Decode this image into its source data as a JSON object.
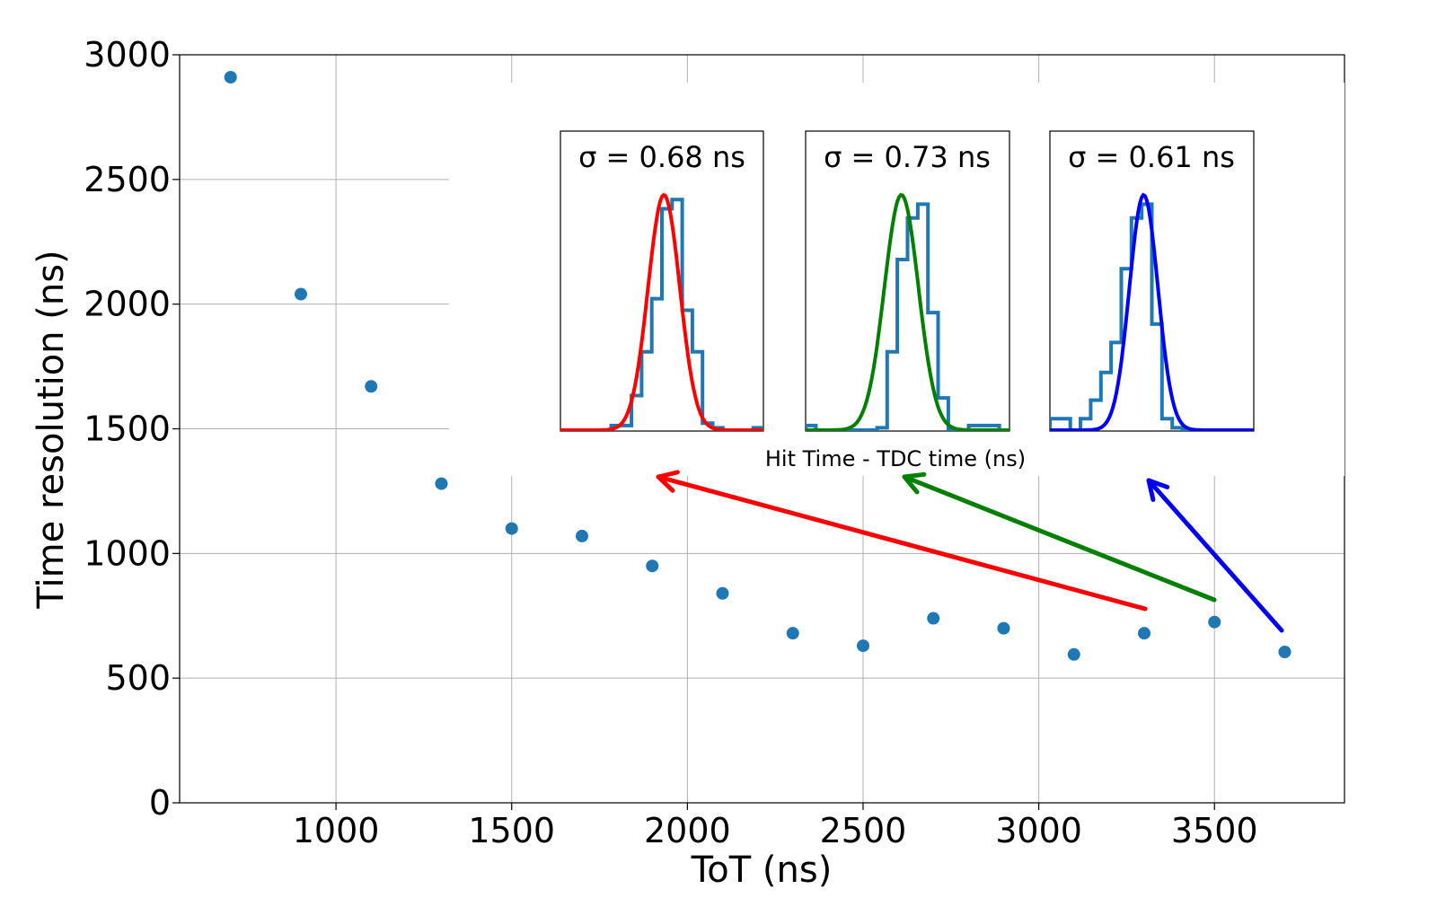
{
  "chart_data": {
    "type": "scatter",
    "title": "",
    "xlabel": "ToT (ns)",
    "ylabel": "Time resolution (ns)",
    "xlim": [
      555,
      3870
    ],
    "ylim": [
      0,
      3000
    ],
    "xticks": [
      1000,
      1500,
      2000,
      2500,
      3000,
      3500
    ],
    "yticks": [
      0,
      500,
      1000,
      1500,
      2000,
      2500,
      3000
    ],
    "grid": true,
    "marker_color": "#1f77b4",
    "series": [
      {
        "name": "Time resolution",
        "x": [
          700,
          900,
          1100,
          1300,
          1500,
          1700,
          1900,
          2100,
          2300,
          2500,
          2700,
          2900,
          3100,
          3300,
          3500,
          3700
        ],
        "y": [
          2910,
          2040,
          1670,
          1280,
          1100,
          1070,
          950,
          840,
          680,
          630,
          740,
          700,
          595,
          680,
          725,
          605
        ]
      }
    ],
    "insets": [
      {
        "title": "σ = 0.68 ns",
        "sigma_ns": 0.68,
        "fit_color": "#ff0000",
        "hist_color": "#1f77b4",
        "source_tot": 3300,
        "position": "left"
      },
      {
        "title": "σ = 0.73 ns",
        "sigma_ns": 0.73,
        "fit_color": "#008000",
        "hist_color": "#1f77b4",
        "source_tot": 3500,
        "position": "middle"
      },
      {
        "title": "σ = 0.61 ns",
        "sigma_ns": 0.61,
        "fit_color": "#0000ff",
        "hist_color": "#1f77b4",
        "source_tot": 3700,
        "position": "right"
      }
    ],
    "inset_xlabel": "Hit Time - TDC time (ns)"
  }
}
